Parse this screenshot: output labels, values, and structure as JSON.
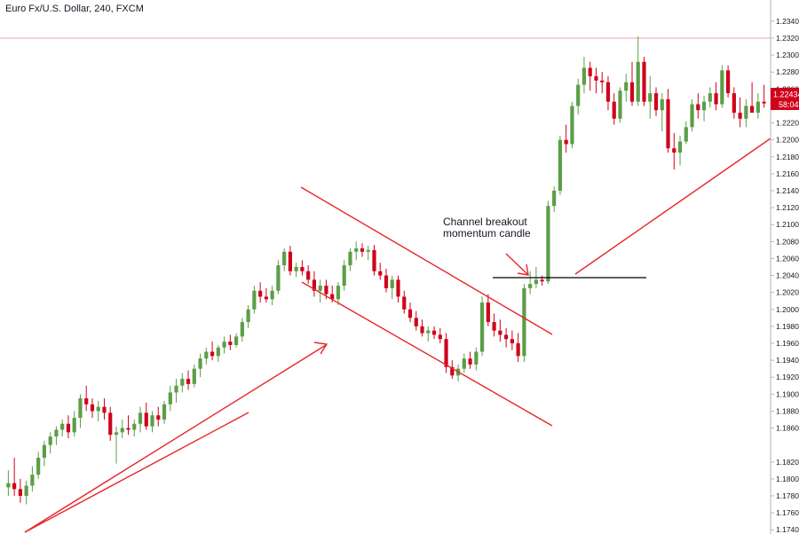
{
  "header": {
    "title": "Euro Fx/U.S. Dollar, 240, FXCM"
  },
  "annotation": {
    "line1": "Channel breakout",
    "line2": "momentum candle"
  },
  "price_badge": {
    "price": "1.22434",
    "countdown": "58:04"
  },
  "colors": {
    "up": "#5b9e47",
    "down": "#d0021b",
    "trendline": "#e8262b",
    "ref_line": "#f2a0a0",
    "level": "#000000",
    "axis_text": "#131722",
    "badge": "#d0021b"
  },
  "chart_data": {
    "type": "candlestick",
    "symbol": "Euro Fx/U.S. Dollar",
    "interval": "240",
    "source": "FXCM",
    "ylim": [
      1.1735,
      1.2365
    ],
    "yticks": [
      "1.23400",
      "1.23200",
      "1.23000",
      "1.22800",
      "1.22600",
      "1.22400",
      "1.22200",
      "1.22000",
      "1.21800",
      "1.21600",
      "1.21400",
      "1.21200",
      "1.21000",
      "1.20800",
      "1.20600",
      "1.20400",
      "1.20200",
      "1.20000",
      "1.19800",
      "1.19600",
      "1.19400",
      "1.19200",
      "1.19000",
      "1.18800",
      "1.18600",
      "1.18200",
      "1.18000",
      "1.17800",
      "1.17600",
      "1.17400"
    ],
    "last_price": 1.22434,
    "reference_line": 1.232,
    "horizontal_level": 1.2031,
    "ohlc": [
      [
        1.179,
        1.181,
        1.178,
        1.1795
      ],
      [
        1.1795,
        1.1825,
        1.178,
        1.1788
      ],
      [
        1.1788,
        1.18,
        1.1772,
        1.178
      ],
      [
        1.178,
        1.1798,
        1.177,
        1.1792
      ],
      [
        1.1792,
        1.1815,
        1.1785,
        1.1805
      ],
      [
        1.1805,
        1.1832,
        1.18,
        1.1825
      ],
      [
        1.1825,
        1.1845,
        1.1815,
        1.184
      ],
      [
        1.184,
        1.1855,
        1.183,
        1.185
      ],
      [
        1.185,
        1.1862,
        1.184,
        1.1858
      ],
      [
        1.1858,
        1.187,
        1.185,
        1.1865
      ],
      [
        1.1865,
        1.1875,
        1.1848,
        1.1855
      ],
      [
        1.1855,
        1.188,
        1.185,
        1.1872
      ],
      [
        1.1872,
        1.19,
        1.186,
        1.1895
      ],
      [
        1.1895,
        1.191,
        1.188,
        1.1888
      ],
      [
        1.1888,
        1.1895,
        1.1872,
        1.188
      ],
      [
        1.188,
        1.1892,
        1.1868,
        1.1885
      ],
      [
        1.1885,
        1.1895,
        1.187,
        1.1878
      ],
      [
        1.1878,
        1.1885,
        1.1845,
        1.1852
      ],
      [
        1.1852,
        1.1862,
        1.1818,
        1.1855
      ],
      [
        1.1855,
        1.187,
        1.1848,
        1.186
      ],
      [
        1.186,
        1.1875,
        1.1852,
        1.1858
      ],
      [
        1.1858,
        1.187,
        1.185,
        1.1865
      ],
      [
        1.1865,
        1.1885,
        1.1855,
        1.1878
      ],
      [
        1.1878,
        1.189,
        1.1858,
        1.1862
      ],
      [
        1.1862,
        1.188,
        1.1855,
        1.1875
      ],
      [
        1.1875,
        1.1885,
        1.1862,
        1.187
      ],
      [
        1.187,
        1.1892,
        1.1865,
        1.1888
      ],
      [
        1.1888,
        1.191,
        1.188,
        1.1902
      ],
      [
        1.1902,
        1.1918,
        1.189,
        1.191
      ],
      [
        1.191,
        1.1925,
        1.1902,
        1.1918
      ],
      [
        1.1918,
        1.1928,
        1.1905,
        1.1912
      ],
      [
        1.1912,
        1.1935,
        1.1908,
        1.193
      ],
      [
        1.193,
        1.1948,
        1.192,
        1.1942
      ],
      [
        1.1942,
        1.1955,
        1.1935,
        1.195
      ],
      [
        1.195,
        1.1962,
        1.194,
        1.1945
      ],
      [
        1.1945,
        1.1958,
        1.1938,
        1.1955
      ],
      [
        1.1955,
        1.1968,
        1.1948,
        1.1962
      ],
      [
        1.1962,
        1.197,
        1.1952,
        1.1958
      ],
      [
        1.1958,
        1.1972,
        1.1955,
        1.1968
      ],
      [
        1.1968,
        1.199,
        1.1962,
        1.1985
      ],
      [
        1.1985,
        1.2005,
        1.1978,
        1.2
      ],
      [
        1.2,
        1.2028,
        1.1995,
        1.2022
      ],
      [
        1.2022,
        1.2032,
        1.2008,
        1.2015
      ],
      [
        1.2015,
        1.2025,
        1.2008,
        1.2012
      ],
      [
        1.2012,
        1.2028,
        1.2005,
        1.2022
      ],
      [
        1.2022,
        1.2058,
        1.2018,
        1.2052
      ],
      [
        1.2052,
        1.2072,
        1.2045,
        1.2068
      ],
      [
        1.2068,
        1.2075,
        1.204,
        1.2045
      ],
      [
        1.2045,
        1.2055,
        1.2038,
        1.205
      ],
      [
        1.205,
        1.2058,
        1.204,
        1.2045
      ],
      [
        1.2045,
        1.2052,
        1.203,
        1.2035
      ],
      [
        1.2035,
        1.2045,
        1.2015,
        1.2022
      ],
      [
        1.2022,
        1.2035,
        1.2008,
        1.2028
      ],
      [
        1.2028,
        1.2035,
        1.2012,
        1.2018
      ],
      [
        1.2018,
        1.2028,
        1.2008,
        1.2012
      ],
      [
        1.2012,
        1.2032,
        1.2005,
        1.2028
      ],
      [
        1.2028,
        1.2058,
        1.2022,
        1.2052
      ],
      [
        1.2052,
        1.2072,
        1.2045,
        1.2068
      ],
      [
        1.2068,
        1.208,
        1.2058,
        1.2072
      ],
      [
        1.2072,
        1.2078,
        1.2062,
        1.2068
      ],
      [
        1.2068,
        1.2075,
        1.2058,
        1.207
      ],
      [
        1.207,
        1.2076,
        1.204,
        1.2045
      ],
      [
        1.2045,
        1.2055,
        1.2035,
        1.204
      ],
      [
        1.204,
        1.2048,
        1.202,
        1.2025
      ],
      [
        1.2025,
        1.204,
        1.2012,
        1.2035
      ],
      [
        1.2035,
        1.204,
        1.2008,
        1.2015
      ],
      [
        1.2015,
        1.2022,
        1.1995,
        1.2
      ],
      [
        1.2,
        1.2008,
        1.1985,
        1.199
      ],
      [
        1.199,
        1.1998,
        1.1975,
        1.198
      ],
      [
        1.198,
        1.1988,
        1.1968,
        1.1972
      ],
      [
        1.1972,
        1.198,
        1.1962,
        1.1975
      ],
      [
        1.1975,
        1.198,
        1.1965,
        1.197
      ],
      [
        1.197,
        1.1978,
        1.196,
        1.1965
      ],
      [
        1.1965,
        1.1972,
        1.1925,
        1.1932
      ],
      [
        1.1932,
        1.194,
        1.1918,
        1.1922
      ],
      [
        1.1922,
        1.1935,
        1.1915,
        1.193
      ],
      [
        1.193,
        1.1948,
        1.1925,
        1.1942
      ],
      [
        1.1942,
        1.195,
        1.193,
        1.1935
      ],
      [
        1.1935,
        1.1955,
        1.1928,
        1.195
      ],
      [
        1.195,
        1.2015,
        1.1945,
        1.2008
      ],
      [
        1.2008,
        1.2018,
        1.198,
        1.1985
      ],
      [
        1.1985,
        1.1995,
        1.1968,
        1.1975
      ],
      [
        1.1975,
        1.1988,
        1.1962,
        1.197
      ],
      [
        1.197,
        1.1978,
        1.1955,
        1.1965
      ],
      [
        1.1965,
        1.1975,
        1.1952,
        1.196
      ],
      [
        1.196,
        1.1972,
        1.1938,
        1.1945
      ],
      [
        1.1945,
        1.203,
        1.1938,
        1.2025
      ],
      [
        1.2025,
        1.2045,
        1.2018,
        1.203
      ],
      [
        1.203,
        1.205,
        1.2025,
        1.2035
      ],
      [
        1.2035,
        1.204,
        1.2028,
        1.2033
      ],
      [
        1.2033,
        1.2128,
        1.203,
        1.2122
      ],
      [
        1.2122,
        1.2145,
        1.2115,
        1.214
      ],
      [
        1.214,
        1.2205,
        1.2135,
        1.22
      ],
      [
        1.22,
        1.2218,
        1.2185,
        1.2195
      ],
      [
        1.2195,
        1.2245,
        1.219,
        1.224
      ],
      [
        1.224,
        1.2272,
        1.223,
        1.2265
      ],
      [
        1.2265,
        1.2298,
        1.2255,
        1.2285
      ],
      [
        1.2285,
        1.2292,
        1.2258,
        1.2275
      ],
      [
        1.2275,
        1.2285,
        1.2255,
        1.227
      ],
      [
        1.227,
        1.228,
        1.2255,
        1.2268
      ],
      [
        1.2268,
        1.2275,
        1.2235,
        1.2245
      ],
      [
        1.2245,
        1.2255,
        1.2218,
        1.2225
      ],
      [
        1.2225,
        1.2262,
        1.222,
        1.2258
      ],
      [
        1.2258,
        1.2278,
        1.2245,
        1.2268
      ],
      [
        1.2268,
        1.2292,
        1.224,
        1.2245
      ],
      [
        1.2245,
        1.2322,
        1.224,
        1.2292
      ],
      [
        1.2292,
        1.2298,
        1.224,
        1.2245
      ],
      [
        1.2245,
        1.2275,
        1.2225,
        1.2255
      ],
      [
        1.2255,
        1.2262,
        1.2228,
        1.2235
      ],
      [
        1.2235,
        1.2255,
        1.221,
        1.2248
      ],
      [
        1.2248,
        1.226,
        1.2185,
        1.219
      ],
      [
        1.219,
        1.2208,
        1.2165,
        1.2185
      ],
      [
        1.2185,
        1.2205,
        1.217,
        1.2198
      ],
      [
        1.2198,
        1.2222,
        1.2195,
        1.2215
      ],
      [
        1.2215,
        1.2248,
        1.221,
        1.2242
      ],
      [
        1.2242,
        1.2255,
        1.2225,
        1.2235
      ],
      [
        1.2235,
        1.2252,
        1.2222,
        1.2245
      ],
      [
        1.2245,
        1.2262,
        1.2238,
        1.2255
      ],
      [
        1.2255,
        1.2268,
        1.2235,
        1.2242
      ],
      [
        1.2242,
        1.2288,
        1.2238,
        1.2282
      ],
      [
        1.2282,
        1.2288,
        1.225,
        1.2255
      ],
      [
        1.2255,
        1.2262,
        1.2225,
        1.2232
      ],
      [
        1.2232,
        1.225,
        1.2215,
        1.2225
      ],
      [
        1.2225,
        1.2248,
        1.2215,
        1.224
      ],
      [
        1.224,
        1.2268,
        1.2232,
        1.2232
      ],
      [
        1.2232,
        1.2255,
        1.2225,
        1.2245
      ],
      [
        1.2245,
        1.2265,
        1.2238,
        1.2243
      ]
    ]
  }
}
